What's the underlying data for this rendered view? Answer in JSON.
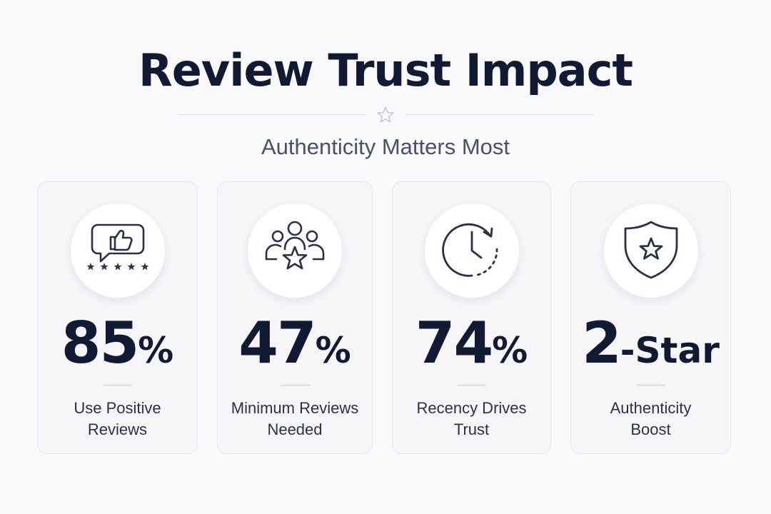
{
  "header": {
    "title": "Review Trust Impact",
    "subtitle": "Authenticity Matters Most",
    "divider_icon": "star-outline-icon"
  },
  "cards": [
    {
      "icon": "thumbs-up-speech-bubble-with-stars-icon",
      "value": "85",
      "unit": "%",
      "label_line1": "Use Positive",
      "label_line2": "Reviews"
    },
    {
      "icon": "user-group-with-star-icon",
      "value": "47",
      "unit": "%",
      "label_line1": "Minimum Reviews",
      "label_line2": "Needed"
    },
    {
      "icon": "clock-with-refresh-arrow-icon",
      "value": "74",
      "unit": "%",
      "label_line1": "Recency Drives",
      "label_line2": "Trust"
    },
    {
      "icon": "shield-with-star-icon",
      "value": "2",
      "unit": "-Star",
      "label_line1": "Authenticity",
      "label_line2": "Boost"
    }
  ],
  "colors": {
    "background": "#f9f9fb",
    "card": "#f6f6f9",
    "text_dark": "#121a33",
    "text_muted": "#4a5068",
    "icon_stroke": "#2a3048"
  }
}
